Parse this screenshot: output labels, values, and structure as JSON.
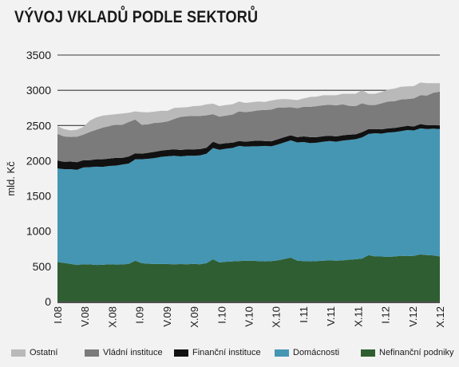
{
  "chart_data": {
    "type": "area",
    "stacked": true,
    "title": "VÝVOJ VKLADŮ PODLE SEKTORŮ",
    "ylabel": "mld. Kč",
    "xlabel": "",
    "ylim": [
      0,
      3500
    ],
    "yticks": [
      0,
      500,
      1000,
      1500,
      2000,
      2500,
      3000,
      3500
    ],
    "grid": "horizontal",
    "legend_position": "bottom",
    "x_ticks": [
      "I.08",
      "V.08",
      "X.08",
      "I.09",
      "V.09",
      "X.09",
      "I.10",
      "V.10",
      "X.10",
      "I.11",
      "V.11",
      "X.11",
      "I.12",
      "V.12",
      "X.12"
    ],
    "x_count": 60,
    "series": [
      {
        "name": "Nefinanční podniky",
        "color": "#2f5e32",
        "values": [
          560,
          550,
          535,
          520,
          530,
          528,
          520,
          523,
          530,
          525,
          527,
          535,
          580,
          545,
          538,
          532,
          535,
          533,
          530,
          532,
          530,
          535,
          530,
          545,
          600,
          555,
          565,
          570,
          575,
          580,
          580,
          575,
          570,
          575,
          585,
          605,
          625,
          580,
          575,
          570,
          575,
          580,
          585,
          580,
          585,
          595,
          600,
          610,
          660,
          640,
          640,
          635,
          640,
          650,
          645,
          650,
          670,
          660,
          655,
          640
        ]
      },
      {
        "name": "Domácnosti",
        "color": "#4496b3",
        "values": [
          1330,
          1330,
          1345,
          1350,
          1375,
          1380,
          1395,
          1390,
          1395,
          1405,
          1418,
          1425,
          1440,
          1475,
          1490,
          1505,
          1520,
          1530,
          1540,
          1530,
          1540,
          1535,
          1545,
          1555,
          1580,
          1600,
          1605,
          1610,
          1635,
          1620,
          1625,
          1630,
          1640,
          1630,
          1645,
          1655,
          1665,
          1680,
          1690,
          1680,
          1680,
          1690,
          1695,
          1690,
          1700,
          1700,
          1705,
          1720,
          1720,
          1750,
          1745,
          1765,
          1765,
          1770,
          1790,
          1780,
          1790,
          1790,
          1800,
          1810
        ]
      },
      {
        "name": "Finanční instituce",
        "color": "#111111",
        "values": [
          110,
          105,
          108,
          110,
          100,
          100,
          105,
          107,
          105,
          110,
          95,
          100,
          85,
          80,
          85,
          90,
          88,
          90,
          92,
          90,
          92,
          90,
          90,
          85,
          90,
          80,
          80,
          75,
          70,
          70,
          75,
          80,
          70,
          70,
          75,
          75,
          70,
          75,
          80,
          85,
          80,
          78,
          75,
          75,
          75,
          75,
          70,
          75,
          70,
          60,
          60,
          60,
          60,
          60,
          60,
          55,
          60,
          55,
          50,
          50
        ]
      },
      {
        "name": "Vládní instituce",
        "color": "#7b7b7b",
        "values": [
          380,
          360,
          350,
          360,
          365,
          400,
          420,
          450,
          460,
          470,
          470,
          490,
          480,
          410,
          405,
          410,
          400,
          405,
          430,
          470,
          470,
          475,
          470,
          460,
          390,
          390,
          390,
          400,
          420,
          420,
          420,
          430,
          440,
          450,
          450,
          420,
          400,
          410,
          420,
          430,
          440,
          440,
          440,
          440,
          440,
          410,
          400,
          410,
          340,
          340,
          370,
          380,
          380,
          390,
          380,
          400,
          410,
          420,
          460,
          480
        ]
      },
      {
        "name": "Ostatní",
        "color": "#b9b9b9",
        "values": [
          110,
          105,
          92,
          100,
          110,
          162,
          175,
          170,
          160,
          150,
          160,
          130,
          115,
          180,
          170,
          160,
          165,
          150,
          158,
          133,
          128,
          140,
          145,
          155,
          150,
          150,
          150,
          145,
          140,
          130,
          130,
          125,
          115,
          130,
          115,
          120,
          110,
          115,
          120,
          140,
          135,
          142,
          135,
          145,
          150,
          170,
          175,
          185,
          160,
          160,
          160,
          170,
          180,
          180,
          180,
          175,
          180,
          175,
          135,
          120
        ]
      }
    ]
  }
}
